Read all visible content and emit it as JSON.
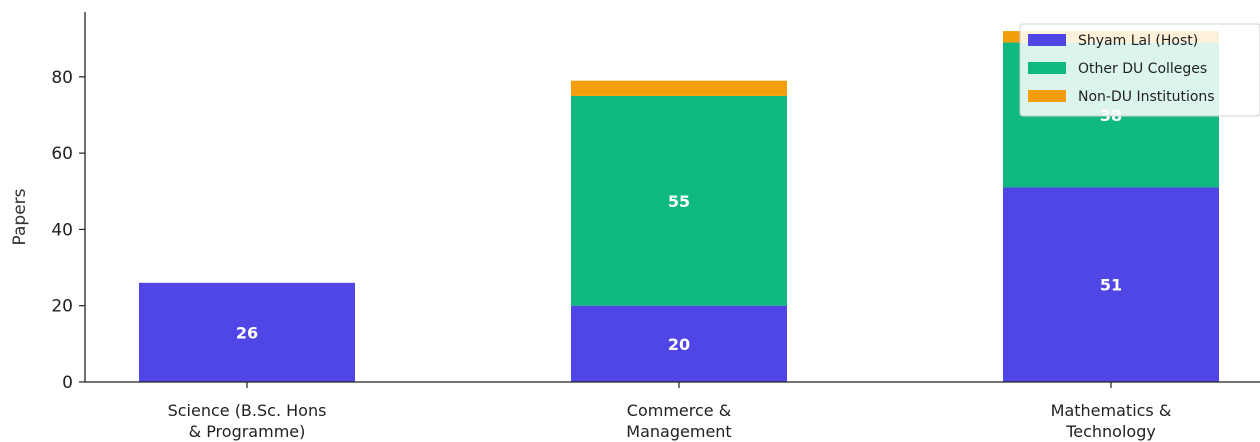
{
  "chart_data": {
    "type": "bar",
    "stacked": true,
    "title": "",
    "xlabel": "",
    "ylabel": "Papers",
    "ylim": [
      0,
      97
    ],
    "yticks": [
      0,
      20,
      40,
      60,
      80
    ],
    "grid": false,
    "legend_position": "top-right",
    "categories": [
      [
        "Science (B.Sc. Hons",
        "& Programme)"
      ],
      [
        "Commerce &",
        "Management"
      ],
      [
        "Mathematics &",
        "Technology"
      ]
    ],
    "series": [
      {
        "name": "Shyam Lal (Host)",
        "color": "#4f46e5",
        "values": [
          26,
          20,
          51
        ]
      },
      {
        "name": "Other DU Colleges",
        "color": "#10b981",
        "values": [
          0,
          55,
          38
        ]
      },
      {
        "name": "Non-DU Institutions",
        "color": "#f59e0b",
        "values": [
          0,
          4,
          3
        ]
      }
    ]
  }
}
